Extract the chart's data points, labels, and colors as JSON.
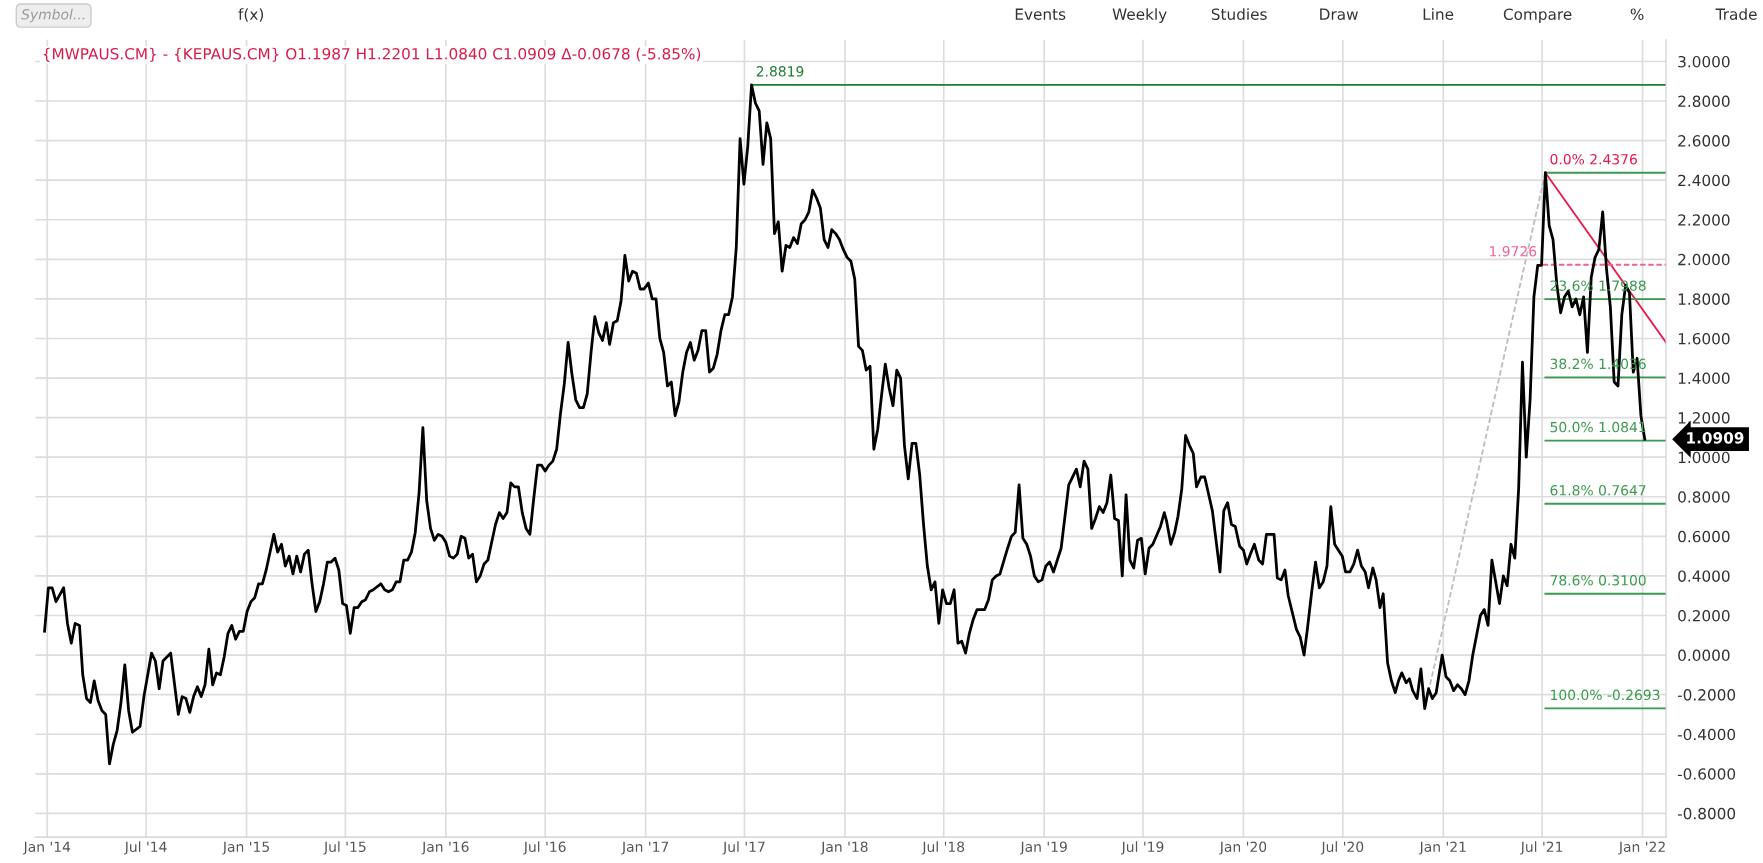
{
  "chart_data": {
    "type": "line",
    "title": "{MWPAUS.CM} - {KEPAUS.CM} O1.1987 H1.2201 L1.0840 C1.0909 Δ-0.0678 (-5.85%)",
    "annotations": [
      "Symbol...",
      "f(x)",
      "Events",
      "Weekly",
      "Studies",
      "Draw",
      "Line",
      "Compare",
      "%",
      "Trade",
      {
        "text": "2.8819",
        "x": "2017-07-14",
        "y": 2.8819
      },
      {
        "text": "0.0% 2.4376",
        "x": "2021-07-07",
        "y": 2.4376
      },
      {
        "text": "23.6% 1.7988",
        "x": "2021-07-07",
        "y": 1.7988
      },
      {
        "text": "38.2% 1.4036",
        "x": "2021-07-07",
        "y": 1.4036
      },
      {
        "text": "50.0% 1.0841",
        "x": "2021-07-07",
        "y": 1.0841
      },
      {
        "text": "61.8% 0.7647",
        "x": "2021-07-07",
        "y": 0.7647
      },
      {
        "text": "78.6% 0.3100",
        "x": "2021-07-07",
        "y": 0.31
      },
      {
        "text": "100.0% -0.2693",
        "x": "2021-07-07",
        "y": -0.2693
      },
      {
        "text": "1.9726",
        "x": "2021-07-02",
        "y": 1.9726
      },
      {
        "text": "1.0909",
        "x": "2022-02-13",
        "y": 1.0909
      }
    ],
    "series": [
      {
        "color": "#000000",
        "x": [
          "2013-12-27",
          "2014-01-03",
          "2014-01-10",
          "2014-01-17",
          "2014-01-31",
          "2014-02-07",
          "2014-02-14",
          "2014-02-21",
          "2014-03-01",
          "2014-03-07",
          "2014-03-14",
          "2014-03-21",
          "2014-03-28",
          "2014-04-04",
          "2014-04-11",
          "2014-04-18",
          "2014-04-25",
          "2014-05-02",
          "2014-05-09",
          "2014-05-16",
          "2014-05-23",
          "2014-05-30",
          "2014-06-06",
          "2014-06-20",
          "2014-06-27",
          "2014-07-11",
          "2014-07-18",
          "2014-07-25",
          "2014-08-01",
          "2014-08-15",
          "2014-08-29",
          "2014-09-05",
          "2014-09-12",
          "2014-09-19",
          "2014-09-26",
          "2014-10-03",
          "2014-10-10",
          "2014-10-17",
          "2014-10-24",
          "2014-10-31",
          "2014-11-07",
          "2014-11-14",
          "2014-11-21",
          "2014-11-28",
          "2014-12-05",
          "2014-12-12",
          "2014-12-19",
          "2014-12-26",
          "2015-01-02",
          "2015-01-09",
          "2015-01-16",
          "2015-01-23",
          "2015-01-30",
          "2015-02-06",
          "2015-02-20",
          "2015-02-27",
          "2015-03-06",
          "2015-03-13",
          "2015-03-20",
          "2015-03-27",
          "2015-04-03",
          "2015-04-10",
          "2015-04-17",
          "2015-04-24",
          "2015-05-01",
          "2015-05-08",
          "2015-05-15",
          "2015-05-22",
          "2015-05-29",
          "2015-06-05",
          "2015-06-12",
          "2015-06-19",
          "2015-06-26",
          "2015-07-03",
          "2015-07-10",
          "2015-07-17",
          "2015-07-24",
          "2015-07-31",
          "2015-08-07",
          "2015-08-14",
          "2015-08-21",
          "2015-09-04",
          "2015-09-11",
          "2015-09-18",
          "2015-09-25",
          "2015-10-02",
          "2015-10-09",
          "2015-10-16",
          "2015-10-23",
          "2015-10-30",
          "2015-11-06",
          "2015-11-13",
          "2015-11-20",
          "2015-11-27",
          "2015-12-04",
          "2015-12-11",
          "2015-12-18",
          "2015-12-25",
          "2016-01-01",
          "2016-01-08",
          "2016-01-15",
          "2016-01-22",
          "2016-01-29",
          "2016-02-05",
          "2016-02-12",
          "2016-02-19",
          "2016-02-26",
          "2016-03-04",
          "2016-03-11",
          "2016-03-18",
          "2016-03-25",
          "2016-04-01",
          "2016-04-08",
          "2016-04-15",
          "2016-04-22",
          "2016-04-29",
          "2016-05-06",
          "2016-05-13",
          "2016-05-20",
          "2016-05-27",
          "2016-06-03",
          "2016-06-10",
          "2016-06-17",
          "2016-06-24",
          "2016-07-01",
          "2016-07-08",
          "2016-07-15",
          "2016-07-22",
          "2016-07-29",
          "2016-08-05",
          "2016-08-12",
          "2016-08-19",
          "2016-08-26",
          "2016-09-02",
          "2016-09-09",
          "2016-09-16",
          "2016-09-23",
          "2016-09-30",
          "2016-10-07",
          "2016-10-14",
          "2016-10-21",
          "2016-10-27",
          "2016-11-03",
          "2016-11-10",
          "2016-11-17",
          "2016-11-24",
          "2016-12-01",
          "2016-12-08",
          "2016-12-15",
          "2016-12-22",
          "2016-12-29",
          "2017-01-06",
          "2017-01-13",
          "2017-01-20",
          "2017-01-27",
          "2017-02-03",
          "2017-02-10",
          "2017-02-17",
          "2017-02-24",
          "2017-03-03",
          "2017-03-10",
          "2017-03-17",
          "2017-03-24",
          "2017-03-31",
          "2017-04-07",
          "2017-04-14",
          "2017-04-21",
          "2017-04-28",
          "2017-05-05",
          "2017-05-12",
          "2017-05-19",
          "2017-05-26",
          "2017-06-02",
          "2017-06-09",
          "2017-06-16",
          "2017-06-23",
          "2017-06-30",
          "2017-07-07",
          "2017-07-14",
          "2017-07-21",
          "2017-07-28",
          "2017-08-04",
          "2017-08-11",
          "2017-08-18",
          "2017-08-25",
          "2017-09-01",
          "2017-09-08",
          "2017-09-15",
          "2017-09-22",
          "2017-09-29",
          "2017-10-06",
          "2017-10-13",
          "2017-10-20",
          "2017-10-27",
          "2017-11-03",
          "2017-11-10",
          "2017-11-17",
          "2017-11-24",
          "2017-12-01",
          "2017-12-08",
          "2017-12-15",
          "2017-12-22",
          "2017-12-29",
          "2018-01-05",
          "2018-01-12",
          "2018-01-19",
          "2018-01-26",
          "2018-02-02",
          "2018-02-09",
          "2018-02-16",
          "2018-02-23",
          "2018-03-02",
          "2018-03-09",
          "2018-03-16",
          "2018-03-23",
          "2018-03-30",
          "2018-04-06",
          "2018-04-13",
          "2018-04-20",
          "2018-04-27",
          "2018-05-04",
          "2018-05-11",
          "2018-05-18",
          "2018-05-25",
          "2018-06-01",
          "2018-06-08",
          "2018-06-15",
          "2018-06-22",
          "2018-06-29",
          "2018-07-06",
          "2018-07-13",
          "2018-07-20",
          "2018-07-27",
          "2018-08-03",
          "2018-08-10",
          "2018-08-17",
          "2018-08-24",
          "2018-08-31",
          "2018-09-14",
          "2018-09-21",
          "2018-09-28",
          "2018-10-05",
          "2018-10-12",
          "2018-10-26",
          "2018-11-02",
          "2018-11-09",
          "2018-11-16",
          "2018-11-23",
          "2018-11-30",
          "2018-12-07",
          "2018-12-14",
          "2018-12-21",
          "2018-12-28",
          "2019-01-04",
          "2019-01-11",
          "2019-01-18",
          "2019-02-01",
          "2019-02-08",
          "2019-02-15",
          "2019-03-01",
          "2019-03-08",
          "2019-03-15",
          "2019-03-22",
          "2019-03-29",
          "2019-04-05",
          "2019-04-12",
          "2019-04-19",
          "2019-04-26",
          "2019-05-03",
          "2019-05-10",
          "2019-05-17",
          "2019-05-24",
          "2019-05-31",
          "2019-06-07",
          "2019-06-14",
          "2019-06-21",
          "2019-06-28",
          "2019-07-05",
          "2019-07-12",
          "2019-07-19",
          "2019-08-02",
          "2019-08-09",
          "2019-08-13",
          "2019-08-21",
          "2019-08-28",
          "2019-09-03",
          "2019-09-10",
          "2019-09-17",
          "2019-09-24",
          "2019-10-01",
          "2019-10-07",
          "2019-10-15",
          "2019-10-22",
          "2019-11-05",
          "2019-11-19",
          "2019-11-26",
          "2019-12-03",
          "2019-12-10",
          "2019-12-17",
          "2019-12-25",
          "2020-01-01",
          "2020-01-07",
          "2020-01-15",
          "2020-01-21",
          "2020-01-29",
          "2020-02-05",
          "2020-02-12",
          "2020-02-19",
          "2020-02-26",
          "2020-03-03",
          "2020-03-10",
          "2020-03-17",
          "2020-03-23",
          "2020-04-07",
          "2020-04-14",
          "2020-04-21",
          "2020-04-27",
          "2020-05-05",
          "2020-05-12",
          "2020-05-19",
          "2020-05-26",
          "2020-06-02",
          "2020-06-09",
          "2020-06-16",
          "2020-06-23",
          "2020-06-30",
          "2020-07-06",
          "2020-07-14",
          "2020-07-21",
          "2020-07-28",
          "2020-08-04",
          "2020-08-11",
          "2020-08-17",
          "2020-08-25",
          "2020-08-31",
          "2020-09-07",
          "2020-09-13",
          "2020-09-21",
          "2020-09-28",
          "2020-10-05",
          "2020-10-11",
          "2020-10-17",
          "2020-10-25",
          "2020-10-31",
          "2020-11-06",
          "2020-11-14",
          "2020-11-21",
          "2020-11-28",
          "2020-12-05",
          "2020-12-12",
          "2020-12-19",
          "2020-12-30",
          "2021-01-06",
          "2021-01-13",
          "2021-01-20",
          "2021-01-27",
          "2021-02-03",
          "2021-02-10",
          "2021-02-17",
          "2021-02-24",
          "2021-03-03",
          "2021-03-10",
          "2021-03-17",
          "2021-03-24",
          "2021-03-31",
          "2021-04-07",
          "2021-04-14",
          "2021-04-21",
          "2021-04-28",
          "2021-05-05",
          "2021-05-12",
          "2021-05-19",
          "2021-05-26",
          "2021-06-02",
          "2021-06-09",
          "2021-06-16",
          "2021-06-23",
          "2021-06-30",
          "2021-07-07",
          "2021-07-14",
          "2021-07-21",
          "2021-07-28",
          "2021-08-04",
          "2021-08-11",
          "2021-08-18",
          "2021-08-25",
          "2021-09-01",
          "2021-09-08",
          "2021-09-15",
          "2021-09-22",
          "2021-09-29",
          "2021-10-06",
          "2021-10-13",
          "2021-10-20",
          "2021-10-27",
          "2021-11-03",
          "2021-11-10",
          "2021-11-17",
          "2021-11-24",
          "2021-12-01",
          "2021-12-08",
          "2021-12-15",
          "2021-12-22",
          "2021-12-29",
          "2022-01-05"
        ],
        "values": [
          0.12,
          0.34,
          0.34,
          0.27,
          0.34,
          0.16,
          0.06,
          0.16,
          0.15,
          -0.1,
          -0.22,
          -0.24,
          -0.13,
          -0.23,
          -0.28,
          -0.3,
          -0.55,
          -0.45,
          -0.38,
          -0.24,
          -0.05,
          -0.28,
          -0.39,
          -0.36,
          -0.21,
          0.01,
          -0.03,
          -0.17,
          -0.03,
          0.01,
          -0.3,
          -0.21,
          -0.22,
          -0.29,
          -0.21,
          -0.16,
          -0.21,
          -0.15,
          0.03,
          -0.15,
          -0.09,
          -0.1,
          -0.01,
          0.11,
          0.15,
          0.08,
          0.12,
          0.12,
          0.22,
          0.27,
          0.29,
          0.36,
          0.36,
          0.43,
          0.61,
          0.52,
          0.56,
          0.45,
          0.5,
          0.41,
          0.5,
          0.42,
          0.51,
          0.53,
          0.36,
          0.22,
          0.27,
          0.36,
          0.47,
          0.47,
          0.49,
          0.43,
          0.26,
          0.25,
          0.11,
          0.24,
          0.24,
          0.27,
          0.28,
          0.32,
          0.33,
          0.36,
          0.33,
          0.32,
          0.33,
          0.37,
          0.37,
          0.48,
          0.48,
          0.52,
          0.62,
          0.82,
          1.15,
          0.78,
          0.64,
          0.58,
          0.61,
          0.6,
          0.57,
          0.5,
          0.49,
          0.51,
          0.6,
          0.59,
          0.49,
          0.51,
          0.37,
          0.4,
          0.46,
          0.48,
          0.57,
          0.66,
          0.72,
          0.69,
          0.72,
          0.87,
          0.85,
          0.85,
          0.72,
          0.64,
          0.61,
          0.79,
          0.96,
          0.96,
          0.93,
          0.96,
          0.98,
          1.04,
          1.22,
          1.37,
          1.58,
          1.42,
          1.29,
          1.25,
          1.25,
          1.32,
          1.53,
          1.71,
          1.63,
          1.59,
          1.68,
          1.57,
          1.68,
          1.69,
          1.79,
          2.02,
          1.89,
          1.94,
          1.93,
          1.85,
          1.85,
          1.88,
          1.8,
          1.8,
          1.6,
          1.53,
          1.36,
          1.38,
          1.21,
          1.28,
          1.43,
          1.53,
          1.58,
          1.49,
          1.54,
          1.64,
          1.64,
          1.43,
          1.45,
          1.52,
          1.64,
          1.72,
          1.72,
          1.81,
          2.06,
          2.61,
          2.38,
          2.57,
          2.8819,
          2.79,
          2.75,
          2.48,
          2.69,
          2.61,
          2.13,
          2.19,
          1.94,
          2.07,
          2.06,
          2.11,
          2.08,
          2.18,
          2.2,
          2.24,
          2.35,
          2.31,
          2.26,
          2.1,
          2.06,
          2.15,
          2.13,
          2.1,
          2.05,
          2.01,
          1.99,
          1.9,
          1.56,
          1.54,
          1.44,
          1.46,
          1.04,
          1.14,
          1.31,
          1.47,
          1.35,
          1.26,
          1.44,
          1.4,
          1.06,
          0.89,
          1.07,
          1.07,
          0.91,
          0.66,
          0.45,
          0.33,
          0.37,
          0.16,
          0.33,
          0.26,
          0.26,
          0.33,
          0.06,
          0.07,
          0.01,
          0.11,
          0.18,
          0.23,
          0.23,
          0.28,
          0.38,
          0.4,
          0.41,
          0.54,
          0.6,
          0.62,
          0.86,
          0.59,
          0.56,
          0.5,
          0.4,
          0.37,
          0.38,
          0.45,
          0.47,
          0.42,
          0.54,
          0.7,
          0.86,
          0.94,
          0.85,
          0.98,
          0.94,
          0.64,
          0.69,
          0.75,
          0.72,
          0.77,
          0.91,
          0.69,
          0.68,
          0.4,
          0.81,
          0.48,
          0.44,
          0.58,
          0.59,
          0.41,
          0.54,
          0.56,
          0.65,
          0.72,
          0.68,
          0.56,
          0.62,
          0.7,
          0.84,
          1.11,
          1.06,
          1.02,
          0.85,
          0.9,
          0.9,
          0.73,
          0.42,
          0.73,
          0.77,
          0.66,
          0.65,
          0.55,
          0.53,
          0.46,
          0.52,
          0.56,
          0.48,
          0.46,
          0.61,
          0.61,
          0.61,
          0.39,
          0.38,
          0.43,
          0.3,
          0.13,
          0.09,
          0.0,
          0.13,
          0.32,
          0.47,
          0.34,
          0.37,
          0.45,
          0.75,
          0.56,
          0.53,
          0.5,
          0.42,
          0.42,
          0.46,
          0.53,
          0.45,
          0.42,
          0.34,
          0.44,
          0.38,
          0.24,
          0.31,
          -0.04,
          -0.13,
          -0.19,
          -0.13,
          -0.09,
          -0.14,
          -0.12,
          -0.18,
          -0.22,
          -0.07,
          -0.27,
          -0.17,
          -0.22,
          -0.19,
          0.0,
          -0.11,
          -0.13,
          -0.18,
          -0.15,
          -0.17,
          -0.2,
          -0.13,
          0.0,
          0.1,
          0.2,
          0.23,
          0.15,
          0.48,
          0.37,
          0.26,
          0.4,
          0.35,
          0.56,
          0.49,
          0.84,
          1.48,
          1.0,
          1.29,
          1.81,
          1.97,
          1.97,
          2.4376,
          2.17,
          2.1,
          1.87,
          1.73,
          1.81,
          1.84,
          1.76,
          1.8,
          1.72,
          1.81,
          1.53,
          1.91,
          2.01,
          2.05,
          2.24,
          1.95,
          1.76,
          1.38,
          1.36,
          1.72,
          1.87,
          1.83,
          1.43,
          1.5,
          1.21,
          1.0909
        ]
      },
      {
        "color": "#1e7d32",
        "x": [
          "2017-07-14",
          "2022-02-13"
        ],
        "values": [
          2.8819,
          2.8819
        ]
      },
      {
        "color": "#bdbdbd",
        "line_style": "dashed",
        "x": [
          "2020-11-28",
          "2021-07-07"
        ],
        "values": [
          -0.2693,
          2.4376
        ]
      },
      {
        "color": "#e8174a",
        "x": [
          "2021-07-07",
          "2022-02-13"
        ],
        "values": [
          2.4376,
          1.58
        ]
      },
      {
        "color": "#f06292",
        "line_style": "dashed",
        "x": [
          "2021-07-02",
          "2022-02-13"
        ],
        "values": [
          1.9726,
          1.9726
        ]
      },
      {
        "color": "#3a9a4e",
        "x": [
          "2021-07-07",
          "2022-02-13"
        ],
        "values": [
          2.4376,
          2.4376
        ]
      },
      {
        "color": "#3a9a4e",
        "x": [
          "2021-07-07",
          "2022-02-13"
        ],
        "values": [
          1.7988,
          1.7988
        ]
      },
      {
        "color": "#3a9a4e",
        "x": [
          "2021-07-07",
          "2022-02-13"
        ],
        "values": [
          1.4036,
          1.4036
        ]
      },
      {
        "color": "#3a9a4e",
        "x": [
          "2021-07-07",
          "2022-02-13"
        ],
        "values": [
          1.0841,
          1.0841
        ]
      },
      {
        "color": "#3a9a4e",
        "x": [
          "2021-07-07",
          "2022-02-13"
        ],
        "values": [
          0.7647,
          0.7647
        ]
      },
      {
        "color": "#3a9a4e",
        "x": [
          "2021-07-07",
          "2022-02-13"
        ],
        "values": [
          0.31,
          0.31
        ]
      },
      {
        "color": "#3a9a4e",
        "x": [
          "2021-07-07",
          "2022-02-13"
        ],
        "values": [
          -0.2693,
          -0.2693
        ]
      }
    ],
    "xlim": [
      "2013-12-10",
      "2022-02-13"
    ],
    "xticks": [
      {
        "value": "2014-01-01",
        "label": "Jan '14"
      },
      {
        "value": "2014-07-01",
        "label": "Jul '14"
      },
      {
        "value": "2015-01-01",
        "label": "Jan '15"
      },
      {
        "value": "2015-07-01",
        "label": "Jul '15"
      },
      {
        "value": "2016-01-01",
        "label": "Jan '16"
      },
      {
        "value": "2016-07-01",
        "label": "Jul '16"
      },
      {
        "value": "2017-01-01",
        "label": "Jan '17"
      },
      {
        "value": "2017-07-01",
        "label": "Jul '17"
      },
      {
        "value": "2018-01-01",
        "label": "Jan '18"
      },
      {
        "value": "2018-07-01",
        "label": "Jul '18"
      },
      {
        "value": "2019-01-01",
        "label": "Jan '19"
      },
      {
        "value": "2019-07-01",
        "label": "Jul '19"
      },
      {
        "value": "2020-01-01",
        "label": "Jan '20"
      },
      {
        "value": "2020-07-01",
        "label": "Jul '20"
      },
      {
        "value": "2021-01-01",
        "label": "Jan '21"
      },
      {
        "value": "2021-07-01",
        "label": "Jul '21"
      },
      {
        "value": "2022-01-01",
        "label": "Jan '22"
      }
    ],
    "ylim": [
      -0.92,
      3.11
    ],
    "yticks": [
      {
        "value": -0.8,
        "label": "-0.8000"
      },
      {
        "value": -0.6,
        "label": "-0.6000"
      },
      {
        "value": -0.4,
        "label": "-0.4000"
      },
      {
        "value": -0.2,
        "label": "-0.2000"
      },
      {
        "value": 0,
        "label": "0.0000"
      },
      {
        "value": 0.2,
        "label": "0.2000"
      },
      {
        "value": 0.4,
        "label": "0.4000"
      },
      {
        "value": 0.6,
        "label": "0.6000"
      },
      {
        "value": 0.8,
        "label": "0.8000"
      },
      {
        "value": 1,
        "label": "1.0000"
      },
      {
        "value": 1.2,
        "label": "1.2000"
      },
      {
        "value": 1.4,
        "label": "1.4000"
      },
      {
        "value": 1.6,
        "label": "1.6000"
      },
      {
        "value": 1.8,
        "label": "1.8000"
      },
      {
        "value": 2,
        "label": "2.0000"
      },
      {
        "value": 2.2,
        "label": "2.2000"
      },
      {
        "value": 2.4,
        "label": "2.4000"
      },
      {
        "value": 2.6,
        "label": "2.6000"
      },
      {
        "value": 2.8,
        "label": "2.8000"
      },
      {
        "value": 3,
        "label": "3.0000"
      }
    ],
    "grid": true,
    "legend": false
  }
}
